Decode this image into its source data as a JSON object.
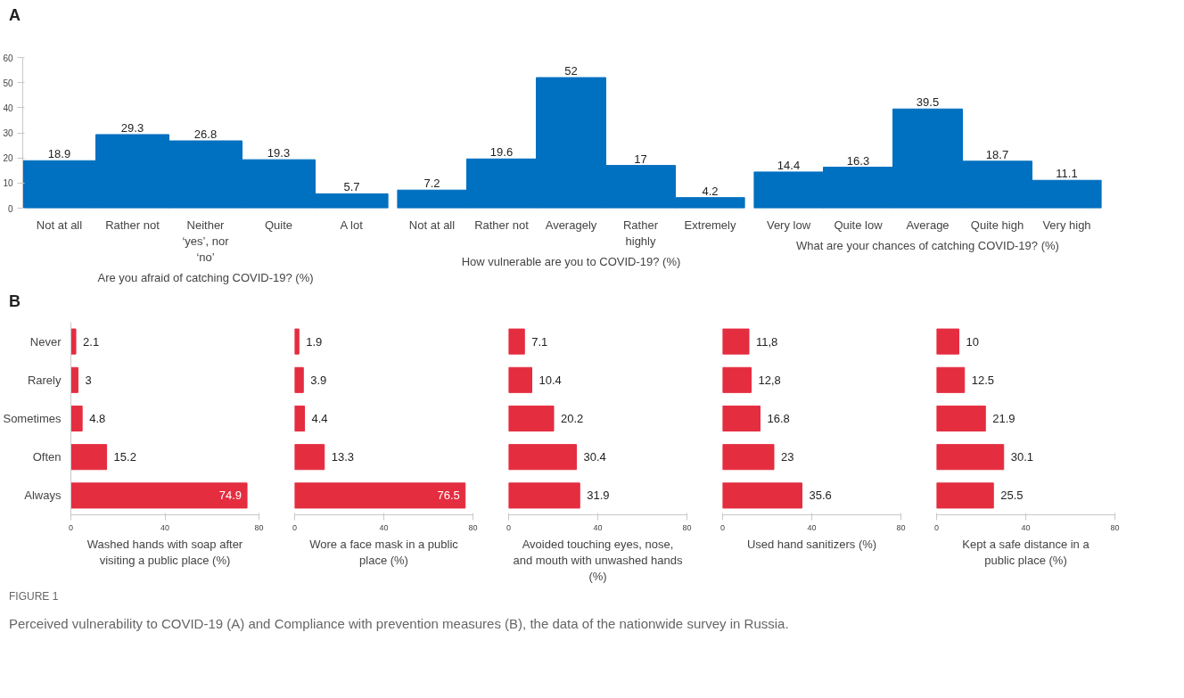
{
  "chart_data": [
    {
      "type": "bar",
      "xlabel": "Are you afraid of catching COVID-19? (%)",
      "categories": [
        "Not at all",
        "Rather not",
        "Neither ‘yes’, nor ‘no’",
        "Quite",
        "A lot"
      ],
      "values": [
        18.9,
        29.3,
        26.8,
        19.3,
        5.7
      ],
      "color": "#0070c0",
      "ylim": [
        0,
        60
      ],
      "yticks": [
        0,
        10,
        20,
        30,
        40,
        50,
        60
      ],
      "data_labels": true,
      "annotations": [
        "A",
        "FIGURE 1",
        "Perceived vulnerability to COVID-19 (A) and Compliance with prevention measures (B), the data of the nationwide survey in Russia."
      ]
    },
    {
      "type": "bar",
      "xlabel": "How vulnerable are you to COVID-19? (%)",
      "categories": [
        "Not at all",
        "Rather not",
        "Averagely",
        "Rather highly",
        "Extremely"
      ],
      "values": [
        7.2,
        19.6,
        52,
        17,
        4.2
      ],
      "color": "#0070c0",
      "ylim": [
        0,
        60
      ],
      "tick_labels": "x",
      "data_labels": true
    },
    {
      "type": "bar",
      "xlabel": "What are your chances of catching COVID-19? (%)",
      "categories": [
        "Very low",
        "Quite low",
        "Average",
        "Quite high",
        "Very high"
      ],
      "values": [
        14.4,
        16.3,
        39.5,
        18.7,
        11.1
      ],
      "color": "#0070c0",
      "ylim": [
        0,
        60
      ],
      "tick_labels": "x",
      "data_labels": true
    },
    {
      "type": "bar",
      "orientation": "horizontal",
      "xlabel": "Washed hands with soap after visiting a public place (%)",
      "categories": [
        "Never",
        "Rarely",
        "Sometimes",
        "Often",
        "Always"
      ],
      "values": [
        2.1,
        3,
        4.8,
        15.2,
        74.9
      ],
      "color": "#e52d40",
      "xlim": [
        0,
        80
      ],
      "xticks": [
        0,
        40,
        80
      ],
      "data_labels": true,
      "annotations": [
        "B"
      ]
    },
    {
      "type": "bar",
      "orientation": "horizontal",
      "xlabel": "Wore a face mask in a public place (%)",
      "categories": [
        "Never",
        "Rarely",
        "Sometimes",
        "Often",
        "Always"
      ],
      "values": [
        1.9,
        3.9,
        4.4,
        13.3,
        76.5
      ],
      "color": "#e52d40",
      "xlim": [
        0,
        80
      ],
      "xticks": [
        0,
        40,
        80
      ],
      "tick_labels": "x",
      "data_labels": true
    },
    {
      "type": "bar",
      "orientation": "horizontal",
      "xlabel": "Avoided touching eyes, nose, and mouth with unwashed hands (%)",
      "categories": [
        "Never",
        "Rarely",
        "Sometimes",
        "Often",
        "Always"
      ],
      "values": [
        7.1,
        10.4,
        20.2,
        30.4,
        31.9
      ],
      "color": "#e52d40",
      "xlim": [
        0,
        80
      ],
      "xticks": [
        0,
        40,
        80
      ],
      "tick_labels": "x",
      "data_labels": true
    },
    {
      "type": "bar",
      "orientation": "horizontal",
      "xlabel": "Used hand sanitizers (%)",
      "categories": [
        "Never",
        "Rarely",
        "Sometimes",
        "Often",
        "Always"
      ],
      "values": [
        11.8,
        12.8,
        16.8,
        23,
        35.6
      ],
      "value_labels": [
        "11,8",
        "12,8",
        "16.8",
        "23",
        "35.6"
      ],
      "color": "#e52d40",
      "xlim": [
        0,
        80
      ],
      "xticks": [
        0,
        40,
        80
      ],
      "tick_labels": "x"
    },
    {
      "type": "bar",
      "orientation": "horizontal",
      "xlabel": "Kept a safe distance in a public place (%)",
      "categories": [
        "Never",
        "Rarely",
        "Sometimes",
        "Often",
        "Always"
      ],
      "values": [
        10,
        12.5,
        21.9,
        30.1,
        25.5
      ],
      "color": "#e52d40",
      "xlim": [
        0,
        80
      ],
      "xticks": [
        0,
        40,
        80
      ],
      "tick_labels": "x",
      "data_labels": true
    }
  ]
}
